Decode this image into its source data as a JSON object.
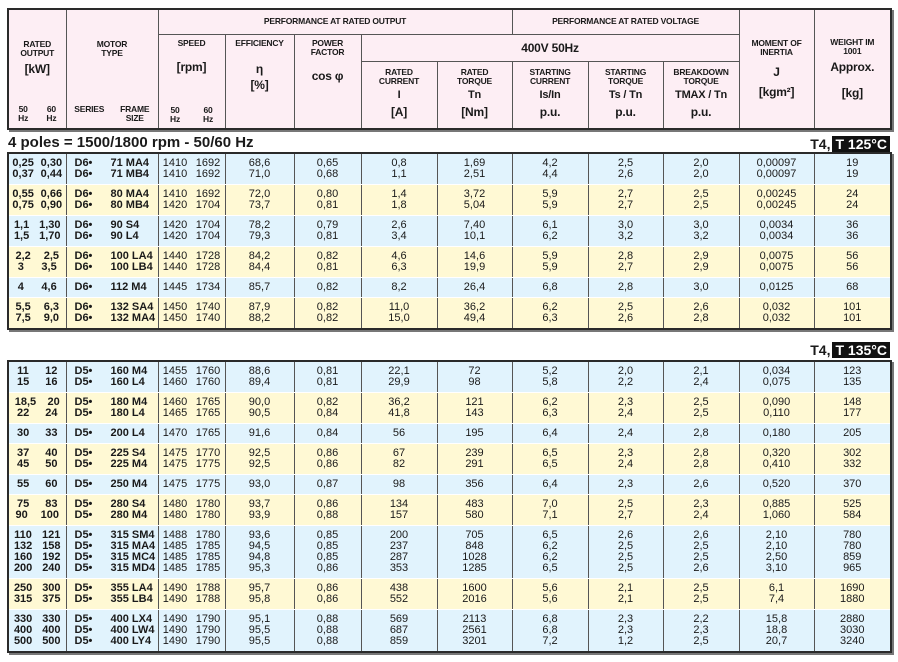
{
  "header": {
    "rated_output": "RATED OUTPUT",
    "kw_unit": "[kW]",
    "hz50": "50 Hz",
    "hz60": "60 Hz",
    "motor_type": "MOTOR TYPE",
    "series": "SERIES",
    "frame_size": "FRAME SIZE",
    "perf_rated_output": "PERFORMANCE AT RATED OUTPUT",
    "perf_rated_voltage": "PERFORMANCE AT RATED  VOLTAGE",
    "voltage": "400V 50Hz",
    "speed": "SPEED",
    "speed_unit": "[rpm]",
    "efficiency": "EFFICIENCY",
    "eta": "η",
    "pct": "[%]",
    "power_factor": "POWER FACTOR",
    "cosphi": "cos φ",
    "rated_current": "RATED CURRENT",
    "i_sym": "I",
    "a_unit": "[A]",
    "rated_torque": "RATED TORQUE",
    "tn_sym": "Tn",
    "nm_unit": "[Nm]",
    "starting_current": "STARTING CURRENT",
    "is_sym": "Is/In",
    "starting_torque": "STARTING TORQUE",
    "ts_sym": "Ts / Tn",
    "breakdown_torque": "BREAKDOWN TORQUE",
    "tmax_sym": "TMAX / Tn",
    "pu": "p.u.",
    "inertia": "MOMENT OF INERTIA",
    "j_sym": "J",
    "j_unit": "[kgm²]",
    "weight": "WEIGHT IM 1001",
    "approx": "Approx.",
    "kg_unit": "[kg]"
  },
  "poles_title": "4 poles = 1500/1800 rpm - 50/60 Hz",
  "colors": {
    "blue": "#e1f3fd",
    "yellow": "#fff9d4",
    "header": "#fdeef4"
  },
  "sections": [
    {
      "temp_class": "T4,",
      "temp_value": "T 125°C",
      "groups": [
        [
          [
            "0,25",
            "0,30",
            "D6•",
            "71 MA4",
            "1410",
            "1692",
            "68,6",
            "0,65",
            "0,8",
            "1,69",
            "4,2",
            "2,5",
            "2,0",
            "0,00097",
            "19"
          ],
          [
            "0,37",
            "0,44",
            "D6•",
            "71 MB4",
            "1410",
            "1692",
            "71,0",
            "0,68",
            "1,1",
            "2,51",
            "4,4",
            "2,6",
            "2,0",
            "0,00097",
            "19"
          ]
        ],
        [
          [
            "0,55",
            "0,66",
            "D6•",
            "80 MA4",
            "1410",
            "1692",
            "72,0",
            "0,80",
            "1,4",
            "3,72",
            "5,9",
            "2,7",
            "2,5",
            "0,00245",
            "24"
          ],
          [
            "0,75",
            "0,90",
            "D6•",
            "80 MB4",
            "1420",
            "1704",
            "73,7",
            "0,81",
            "1,8",
            "5,04",
            "5,9",
            "2,7",
            "2,5",
            "0,00245",
            "24"
          ]
        ],
        [
          [
            "1,1",
            "1,30",
            "D6•",
            "90 S4",
            "1420",
            "1704",
            "78,2",
            "0,79",
            "2,6",
            "7,40",
            "6,1",
            "3,0",
            "3,0",
            "0,0034",
            "36"
          ],
          [
            "1,5",
            "1,70",
            "D6•",
            "90 L4",
            "1420",
            "1704",
            "79,3",
            "0,81",
            "3,4",
            "10,1",
            "6,2",
            "3,2",
            "3,2",
            "0,0034",
            "36"
          ]
        ],
        [
          [
            "2,2",
            "2,5",
            "D6•",
            "100 LA4",
            "1440",
            "1728",
            "84,2",
            "0,82",
            "4,6",
            "14,6",
            "5,9",
            "2,8",
            "2,9",
            "0,0075",
            "56"
          ],
          [
            "3",
            "3,5",
            "D6•",
            "100 LB4",
            "1440",
            "1728",
            "84,4",
            "0,81",
            "6,3",
            "19,9",
            "5,9",
            "2,7",
            "2,9",
            "0,0075",
            "56"
          ]
        ],
        [
          [
            "4",
            "4,6",
            "D6•",
            "112 M4",
            "1445",
            "1734",
            "85,7",
            "0,82",
            "8,2",
            "26,4",
            "6,8",
            "2,8",
            "3,0",
            "0,0125",
            "68"
          ]
        ],
        [
          [
            "5,5",
            "6,3",
            "D6•",
            "132 SA4",
            "1450",
            "1740",
            "87,9",
            "0,82",
            "11,0",
            "36,2",
            "6,2",
            "2,5",
            "2,6",
            "0,032",
            "101"
          ],
          [
            "7,5",
            "9,0",
            "D6•",
            "132 MA4",
            "1450",
            "1740",
            "88,2",
            "0,82",
            "15,0",
            "49,4",
            "6,3",
            "2,6",
            "2,8",
            "0,032",
            "101"
          ]
        ]
      ]
    },
    {
      "temp_class": "T4,",
      "temp_value": "T 135°C",
      "groups": [
        [
          [
            "11",
            "12",
            "D5•",
            "160 M4",
            "1455",
            "1760",
            "88,6",
            "0,81",
            "22,1",
            "72",
            "5,2",
            "2,0",
            "2,1",
            "0,034",
            "123"
          ],
          [
            "15",
            "16",
            "D5•",
            "160 L4",
            "1460",
            "1760",
            "89,4",
            "0,81",
            "29,9",
            "98",
            "5,8",
            "2,2",
            "2,4",
            "0,075",
            "135"
          ]
        ],
        [
          [
            "18,5",
            "20",
            "D5•",
            "180 M4",
            "1460",
            "1765",
            "90,0",
            "0,82",
            "36,2",
            "121",
            "6,2",
            "2,3",
            "2,5",
            "0,090",
            "148"
          ],
          [
            "22",
            "24",
            "D5•",
            "180 L4",
            "1465",
            "1765",
            "90,5",
            "0,84",
            "41,8",
            "143",
            "6,3",
            "2,4",
            "2,5",
            "0,110",
            "177"
          ]
        ],
        [
          [
            "30",
            "33",
            "D5•",
            "200 L4",
            "1470",
            "1765",
            "91,6",
            "0,84",
            "56",
            "195",
            "6,4",
            "2,4",
            "2,8",
            "0,180",
            "205"
          ]
        ],
        [
          [
            "37",
            "40",
            "D5•",
            "225 S4",
            "1475",
            "1770",
            "92,5",
            "0,86",
            "67",
            "239",
            "6,5",
            "2,3",
            "2,8",
            "0,320",
            "302"
          ],
          [
            "45",
            "50",
            "D5•",
            "225 M4",
            "1475",
            "1775",
            "92,5",
            "0,86",
            "82",
            "291",
            "6,5",
            "2,4",
            "2,8",
            "0,410",
            "332"
          ]
        ],
        [
          [
            "55",
            "60",
            "D5•",
            "250 M4",
            "1475",
            "1775",
            "93,0",
            "0,87",
            "98",
            "356",
            "6,4",
            "2,3",
            "2,6",
            "0,520",
            "370"
          ]
        ],
        [
          [
            "75",
            "83",
            "D5•",
            "280 S4",
            "1480",
            "1780",
            "93,7",
            "0,86",
            "134",
            "483",
            "7,0",
            "2,5",
            "2,3",
            "0,885",
            "525"
          ],
          [
            "90",
            "100",
            "D5•",
            "280 M4",
            "1480",
            "1780",
            "93,9",
            "0,88",
            "157",
            "580",
            "7,1",
            "2,7",
            "2,4",
            "1,060",
            "584"
          ]
        ],
        [
          [
            "110",
            "121",
            "D5•",
            "315 SM4",
            "1488",
            "1780",
            "93,6",
            "0,85",
            "200",
            "705",
            "6,5",
            "2,6",
            "2,6",
            "2,10",
            "780"
          ],
          [
            "132",
            "158",
            "D5•",
            "315 MA4",
            "1485",
            "1785",
            "94,5",
            "0,85",
            "237",
            "848",
            "6,2",
            "2,5",
            "2,5",
            "2,10",
            "780"
          ],
          [
            "160",
            "192",
            "D5•",
            "315 MC4",
            "1485",
            "1785",
            "94,8",
            "0,85",
            "287",
            "1028",
            "6,2",
            "2,5",
            "2,5",
            "2,50",
            "859"
          ],
          [
            "200",
            "240",
            "D5•",
            "315 MD4",
            "1485",
            "1785",
            "95,3",
            "0,86",
            "353",
            "1285",
            "6,5",
            "2,5",
            "2,6",
            "3,10",
            "965"
          ]
        ],
        [
          [
            "250",
            "300",
            "D5•",
            "355 LA4",
            "1490",
            "1788",
            "95,7",
            "0,86",
            "438",
            "1600",
            "5,6",
            "2,1",
            "2,5",
            "6,1",
            "1690"
          ],
          [
            "315",
            "375",
            "D5•",
            "355 LB4",
            "1490",
            "1788",
            "95,8",
            "0,86",
            "552",
            "2016",
            "5,6",
            "2,1",
            "2,5",
            "7,4",
            "1880"
          ]
        ],
        [
          [
            "330",
            "330",
            "D5•",
            "400 LX4",
            "1490",
            "1790",
            "95,1",
            "0,88",
            "569",
            "2113",
            "6,8",
            "2,3",
            "2,2",
            "15,8",
            "2880"
          ],
          [
            "400",
            "400",
            "D5•",
            "400 LW4",
            "1490",
            "1790",
            "95,5",
            "0,88",
            "687",
            "2561",
            "6,8",
            "2,3",
            "2,3",
            "18,8",
            "3030"
          ],
          [
            "500",
            "500",
            "D5•",
            "400 LY4",
            "1490",
            "1790",
            "95,5",
            "0,88",
            "859",
            "3201",
            "7,2",
            "1,2",
            "2,5",
            "20,7",
            "3240"
          ]
        ]
      ]
    }
  ]
}
